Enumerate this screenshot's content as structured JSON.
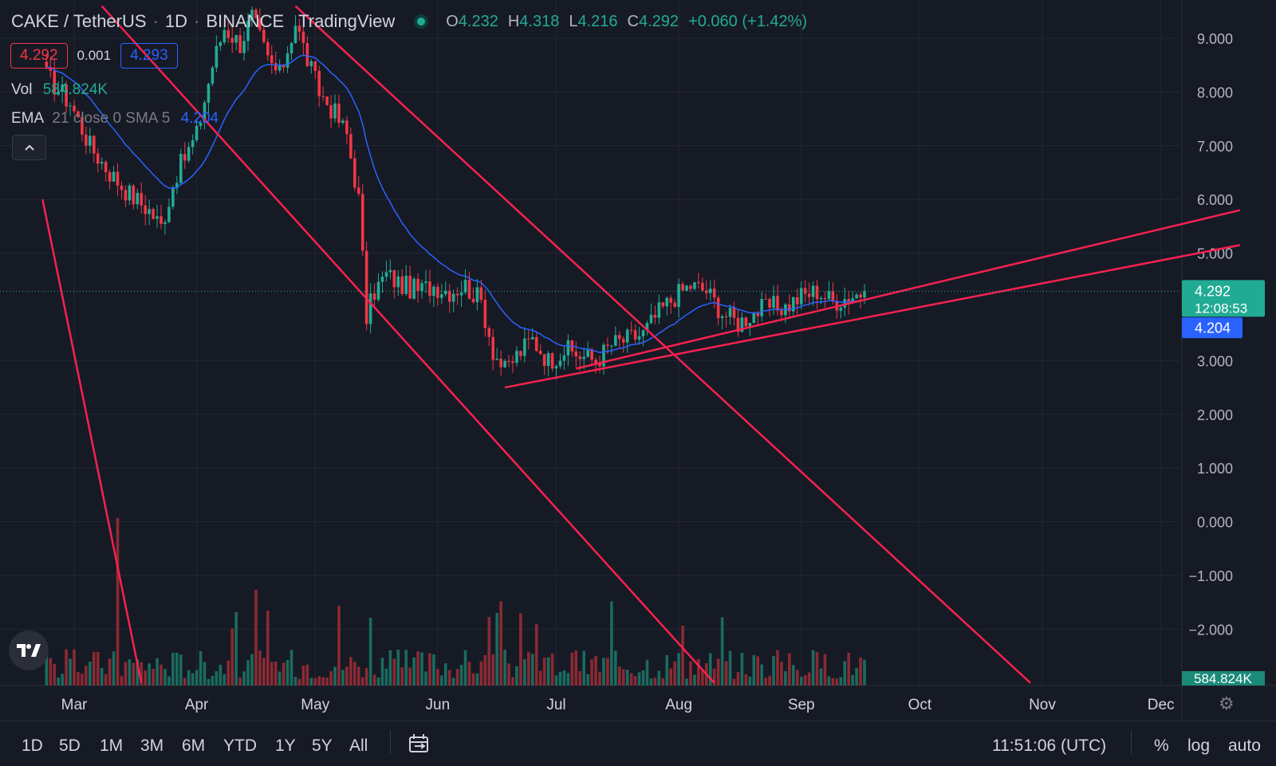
{
  "header": {
    "symbol": "CAKE / TetherUS",
    "interval": "1D",
    "exchange": "BINANCE",
    "source": "TradingView",
    "ohlc": {
      "o_label": "O",
      "o": "4.232",
      "h_label": "H",
      "h": "4.318",
      "l_label": "L",
      "l": "4.216",
      "c_label": "C",
      "c": "4.292",
      "change": "+0.060 (+1.42%)"
    }
  },
  "quote": {
    "sell": "4.292",
    "spread": "0.001",
    "buy": "4.293"
  },
  "indicators": {
    "vol": {
      "label": "Vol",
      "value": "584.824K"
    },
    "ema": {
      "label": "EMA",
      "params": "21 close 0 SMA 5",
      "value": "4.204"
    }
  },
  "price_labels": {
    "last": "4.292",
    "countdown": "12:08:53",
    "ema": "4.204",
    "volume": "584.824K"
  },
  "toolbar": {
    "ranges": [
      "1D",
      "5D",
      "1M",
      "3M",
      "6M",
      "YTD",
      "1Y",
      "5Y",
      "All"
    ],
    "clock": "11:51:06 (UTC)",
    "percent": "%",
    "log": "log",
    "auto": "auto"
  },
  "colors": {
    "up": "#22ab94",
    "down": "#f23645",
    "ema": "#2962ff",
    "trendline": "#f7214f",
    "bg": "#161a25",
    "grid": "#232733"
  },
  "chart_data": {
    "type": "candlestick",
    "x_ticks": [
      "Mar",
      "Apr",
      "May",
      "Jun",
      "Jul",
      "Aug",
      "Sep",
      "Oct",
      "Nov",
      "Dec"
    ],
    "y_ticks": [
      "9.000",
      "8.000",
      "7.000",
      "6.000",
      "5.000",
      "3.000",
      "2.000",
      "1.000",
      "0.000",
      "−1.000",
      "−2.000"
    ],
    "ylim": [
      -3.0,
      9.6
    ],
    "grid": true,
    "last_price": 4.292,
    "ema_value": 4.204,
    "close_path": [
      [
        "2021-02-22",
        8.3
      ],
      [
        "2021-02-28",
        7.8
      ],
      [
        "2021-03-05",
        7.0
      ],
      [
        "2021-03-10",
        6.5
      ],
      [
        "2021-03-15",
        6.1
      ],
      [
        "2021-03-20",
        5.8
      ],
      [
        "2021-03-23",
        5.5
      ],
      [
        "2021-03-27",
        6.5
      ],
      [
        "2021-04-01",
        7.2
      ],
      [
        "2021-04-05",
        8.5
      ],
      [
        "2021-04-08",
        9.2
      ],
      [
        "2021-04-12",
        8.9
      ],
      [
        "2021-04-15",
        9.4
      ],
      [
        "2021-04-19",
        8.6
      ],
      [
        "2021-04-22",
        8.3
      ],
      [
        "2021-04-26",
        9.3
      ],
      [
        "2021-04-29",
        8.6
      ],
      [
        "2021-05-02",
        8.0
      ],
      [
        "2021-05-06",
        7.6
      ],
      [
        "2021-05-09",
        7.2
      ],
      [
        "2021-05-12",
        6.0
      ],
      [
        "2021-05-14",
        3.8
      ],
      [
        "2021-05-16",
        4.3
      ],
      [
        "2021-05-19",
        4.6
      ],
      [
        "2021-05-23",
        4.4
      ],
      [
        "2021-05-27",
        4.3
      ],
      [
        "2021-05-31",
        4.4
      ],
      [
        "2021-06-04",
        4.3
      ],
      [
        "2021-06-08",
        4.4
      ],
      [
        "2021-06-12",
        4.1
      ],
      [
        "2021-06-15",
        3.2
      ],
      [
        "2021-06-18",
        2.8
      ],
      [
        "2021-06-21",
        3.1
      ],
      [
        "2021-06-25",
        3.4
      ],
      [
        "2021-06-29",
        3.0
      ],
      [
        "2021-07-03",
        3.2
      ],
      [
        "2021-07-07",
        3.1
      ],
      [
        "2021-07-11",
        3.0
      ],
      [
        "2021-07-15",
        3.3
      ],
      [
        "2021-07-19",
        3.4
      ],
      [
        "2021-07-23",
        3.5
      ],
      [
        "2021-07-27",
        3.9
      ],
      [
        "2021-07-31",
        4.2
      ],
      [
        "2021-08-04",
        4.4
      ],
      [
        "2021-08-08",
        4.3
      ],
      [
        "2021-08-12",
        3.9
      ],
      [
        "2021-08-16",
        3.7
      ],
      [
        "2021-08-20",
        3.9
      ],
      [
        "2021-08-24",
        4.0
      ],
      [
        "2021-08-28",
        4.0
      ],
      [
        "2021-09-01",
        4.2
      ],
      [
        "2021-09-05",
        4.3
      ],
      [
        "2021-09-09",
        4.1
      ],
      [
        "2021-09-13",
        4.2
      ],
      [
        "2021-09-17",
        4.29
      ]
    ],
    "trendlines": [
      {
        "from": [
          "2021-02-21",
          6.0
        ],
        "to": [
          "2021-03-18",
          -3.0
        ]
      },
      {
        "from": [
          "2021-03-08",
          9.6
        ],
        "to": [
          "2021-08-10",
          -3.0
        ]
      },
      {
        "from": [
          "2021-04-26",
          9.6
        ],
        "to": [
          "2021-10-29",
          -3.0
        ]
      },
      {
        "from": [
          "2021-06-18",
          2.5
        ],
        "to": [
          "2021-12-21",
          5.15
        ]
      },
      {
        "from": [
          "2021-07-06",
          2.85
        ],
        "to": [
          "2021-12-21",
          5.8
        ]
      }
    ]
  }
}
